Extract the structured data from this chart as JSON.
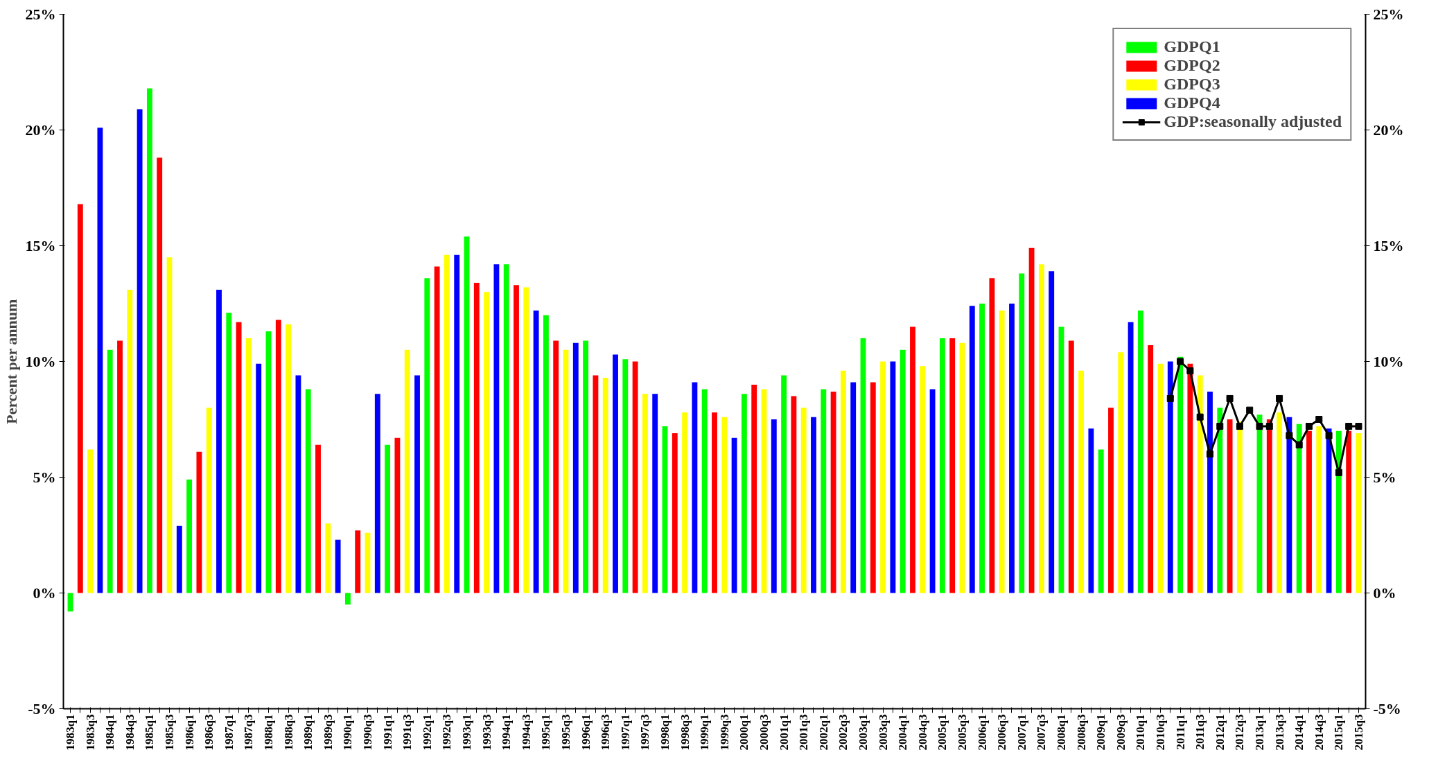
{
  "chart_data": {
    "type": "bar",
    "ylabel": "Percent per annum",
    "categories": [
      "1983q1",
      null,
      "1983q3",
      null,
      "1984q1",
      null,
      "1984q3",
      null,
      "1985q1",
      null,
      "1985q3",
      null,
      "1986q1",
      null,
      "1986q3",
      null,
      "1987q1",
      null,
      "1987q3",
      null,
      "1988q1",
      null,
      "1988q3",
      null,
      "1989q1",
      null,
      "1989q3",
      null,
      "1990q1",
      null,
      "1990q3",
      null,
      "1991q1",
      null,
      "1991q3",
      null,
      "1992q1",
      null,
      "1992q3",
      null,
      "1993q1",
      null,
      "1993q3",
      null,
      "1994q1",
      null,
      "1994q3",
      null,
      "1995q1",
      null,
      "1995q3",
      null,
      "1996q1",
      null,
      "1996q3",
      null,
      "1997q1",
      null,
      "1997q3",
      null,
      "1998q1",
      null,
      "1998q3",
      null,
      "1999q1",
      null,
      "1999q3",
      null,
      "2000q1",
      null,
      "2000q3",
      null,
      "2001q1",
      null,
      "2001q3",
      null,
      "2002q1",
      null,
      "2002q3",
      null,
      "2003q1",
      null,
      "2003q3",
      null,
      "2004q1",
      null,
      "2004q3",
      null,
      "2005q1",
      null,
      "2005q3",
      null,
      "2006q1",
      null,
      "2006q3",
      null,
      "2007q1",
      null,
      "2007q3",
      null,
      "2008q1",
      null,
      "2008q3",
      null,
      "2009q1",
      null,
      "2009q3",
      null,
      "2010q1",
      null,
      "2010q3",
      null,
      "2011q1",
      null,
      "2011q3",
      null,
      "2012q1",
      null,
      "2012q3",
      null,
      "2013q1",
      null,
      "2013q3",
      null,
      "2014q1",
      null,
      "2014q3",
      null,
      "2015q1",
      null,
      "2015q3"
    ],
    "series": [
      {
        "name": "GDPQ1",
        "color": "#00ff00",
        "values": [
          -0.8,
          null,
          null,
          null,
          10.5,
          null,
          null,
          null,
          21.8,
          null,
          null,
          null,
          4.9,
          null,
          null,
          null,
          12.1,
          null,
          null,
          null,
          11.3,
          null,
          null,
          null,
          8.8,
          null,
          null,
          null,
          -0.5,
          null,
          null,
          null,
          6.4,
          null,
          null,
          null,
          13.6,
          null,
          null,
          null,
          15.4,
          null,
          null,
          null,
          14.2,
          null,
          null,
          null,
          12.0,
          null,
          null,
          null,
          10.9,
          null,
          null,
          null,
          10.1,
          null,
          null,
          null,
          7.2,
          null,
          null,
          null,
          8.8,
          null,
          null,
          null,
          8.6,
          null,
          null,
          null,
          9.4,
          null,
          null,
          null,
          8.8,
          null,
          null,
          null,
          11.0,
          null,
          null,
          null,
          10.5,
          null,
          null,
          null,
          11.0,
          null,
          null,
          null,
          12.5,
          null,
          null,
          null,
          13.8,
          null,
          null,
          null,
          11.5,
          null,
          null,
          null,
          6.2,
          null,
          null,
          null,
          12.2,
          null,
          null,
          null,
          10.2,
          null,
          null,
          null,
          8.0,
          null,
          null,
          null,
          7.7,
          null,
          null,
          null,
          7.3,
          null,
          null,
          null,
          7.0,
          null,
          null
        ]
      },
      {
        "name": "GDPQ2",
        "color": "#ff0000",
        "values": [
          null,
          16.8,
          null,
          null,
          null,
          10.9,
          null,
          null,
          null,
          18.8,
          null,
          null,
          null,
          6.1,
          null,
          null,
          null,
          11.7,
          null,
          null,
          null,
          11.8,
          null,
          null,
          null,
          6.4,
          null,
          null,
          null,
          2.7,
          null,
          null,
          null,
          6.7,
          null,
          null,
          null,
          14.1,
          null,
          null,
          null,
          13.4,
          null,
          null,
          null,
          13.3,
          null,
          null,
          null,
          10.9,
          null,
          null,
          null,
          9.4,
          null,
          null,
          null,
          10.0,
          null,
          null,
          null,
          6.9,
          null,
          null,
          null,
          7.8,
          null,
          null,
          null,
          9.0,
          null,
          null,
          null,
          8.5,
          null,
          null,
          null,
          8.7,
          null,
          null,
          null,
          9.1,
          null,
          null,
          null,
          11.5,
          null,
          null,
          null,
          11.0,
          null,
          null,
          null,
          13.6,
          null,
          null,
          null,
          14.9,
          null,
          null,
          null,
          10.9,
          null,
          null,
          null,
          8.0,
          null,
          null,
          null,
          10.7,
          null,
          null,
          null,
          9.9,
          null,
          null,
          null,
          7.5,
          null,
          null,
          null,
          7.5,
          null,
          null,
          null,
          7.0,
          null,
          null,
          null,
          7.0,
          null
        ]
      },
      {
        "name": "GDPQ3",
        "color": "#ffff00",
        "values": [
          null,
          null,
          6.2,
          null,
          null,
          null,
          13.1,
          null,
          null,
          null,
          14.5,
          null,
          null,
          null,
          8.0,
          null,
          null,
          null,
          11.0,
          null,
          null,
          null,
          11.6,
          null,
          null,
          null,
          3.0,
          null,
          null,
          null,
          2.6,
          null,
          null,
          null,
          10.5,
          null,
          null,
          null,
          14.6,
          null,
          null,
          null,
          13.0,
          null,
          null,
          null,
          13.2,
          null,
          null,
          null,
          10.5,
          null,
          null,
          null,
          9.3,
          null,
          null,
          null,
          8.6,
          null,
          null,
          null,
          7.8,
          null,
          null,
          null,
          7.6,
          null,
          null,
          null,
          8.8,
          null,
          null,
          null,
          8.0,
          null,
          null,
          null,
          9.6,
          null,
          null,
          null,
          10.0,
          null,
          null,
          null,
          9.8,
          null,
          null,
          null,
          10.8,
          null,
          null,
          null,
          12.2,
          null,
          null,
          null,
          14.2,
          null,
          null,
          null,
          9.6,
          null,
          null,
          null,
          10.4,
          null,
          null,
          null,
          9.9,
          null,
          null,
          null,
          9.4,
          null,
          null,
          null,
          7.4,
          null,
          null,
          null,
          7.8,
          null,
          null,
          null,
          7.2,
          null,
          null,
          null,
          6.9
        ]
      },
      {
        "name": "GDPQ4",
        "color": "#0000ff",
        "values": [
          null,
          null,
          null,
          20.1,
          null,
          null,
          null,
          20.9,
          null,
          null,
          null,
          2.9,
          null,
          null,
          null,
          13.1,
          null,
          null,
          null,
          9.9,
          null,
          null,
          null,
          9.4,
          null,
          null,
          null,
          2.3,
          null,
          null,
          null,
          8.6,
          null,
          null,
          null,
          9.4,
          null,
          null,
          null,
          14.6,
          null,
          null,
          null,
          14.2,
          null,
          null,
          null,
          12.2,
          null,
          null,
          null,
          10.8,
          null,
          null,
          null,
          10.3,
          null,
          null,
          null,
          8.6,
          null,
          null,
          null,
          9.1,
          null,
          null,
          null,
          6.7,
          null,
          null,
          null,
          7.5,
          null,
          null,
          null,
          7.6,
          null,
          null,
          null,
          9.1,
          null,
          null,
          null,
          10.0,
          null,
          null,
          null,
          8.8,
          null,
          null,
          null,
          12.4,
          null,
          null,
          null,
          12.5,
          null,
          null,
          null,
          13.9,
          null,
          null,
          null,
          7.1,
          null,
          null,
          null,
          11.7,
          null,
          null,
          null,
          10.0,
          null,
          null,
          null,
          8.7,
          null,
          null,
          null,
          null,
          null,
          null,
          null,
          7.6,
          null,
          null,
          null,
          7.1,
          null,
          null,
          null
        ]
      },
      {
        "name": "GDP:seasonally adjusted",
        "type": "line",
        "marker": "square",
        "color": "#000000",
        "values": [
          null,
          null,
          null,
          null,
          null,
          null,
          null,
          null,
          null,
          null,
          null,
          null,
          null,
          null,
          null,
          null,
          null,
          null,
          null,
          null,
          null,
          null,
          null,
          null,
          null,
          null,
          null,
          null,
          null,
          null,
          null,
          null,
          null,
          null,
          null,
          null,
          null,
          null,
          null,
          null,
          null,
          null,
          null,
          null,
          null,
          null,
          null,
          null,
          null,
          null,
          null,
          null,
          null,
          null,
          null,
          null,
          null,
          null,
          null,
          null,
          null,
          null,
          null,
          null,
          null,
          null,
          null,
          null,
          null,
          null,
          null,
          null,
          null,
          null,
          null,
          null,
          null,
          null,
          null,
          null,
          null,
          null,
          null,
          null,
          null,
          null,
          null,
          null,
          null,
          null,
          null,
          null,
          null,
          null,
          null,
          null,
          null,
          null,
          null,
          null,
          null,
          null,
          null,
          null,
          null,
          null,
          null,
          null,
          null,
          null,
          null,
          8.4,
          10.0,
          9.6,
          7.6,
          6.0,
          7.2,
          8.4,
          7.2,
          7.9,
          7.2,
          7.2,
          8.4,
          6.8,
          6.4,
          7.2,
          7.5,
          6.8,
          5.2,
          7.2,
          7.2
        ]
      }
    ],
    "ylim": [
      -5,
      25
    ],
    "yticks": [
      {
        "value": -5,
        "label": "-5%"
      },
      {
        "value": 0,
        "label": "0%"
      },
      {
        "value": 5,
        "label": "5%"
      },
      {
        "value": 10,
        "label": "10%"
      },
      {
        "value": 15,
        "label": "15%"
      },
      {
        "value": 20,
        "label": "20%"
      },
      {
        "value": 25,
        "label": "25%"
      }
    ],
    "y2lim": [
      -5,
      25
    ],
    "y2ticks": [
      {
        "value": -5,
        "label": "-5%"
      },
      {
        "value": 0,
        "label": "0%"
      },
      {
        "value": 5,
        "label": "5%"
      },
      {
        "value": 10,
        "label": "10%"
      },
      {
        "value": 15,
        "label": "15%"
      },
      {
        "value": 20,
        "label": "20%"
      },
      {
        "value": 25,
        "label": "25%"
      }
    ],
    "grid": false,
    "legend": "top right"
  }
}
